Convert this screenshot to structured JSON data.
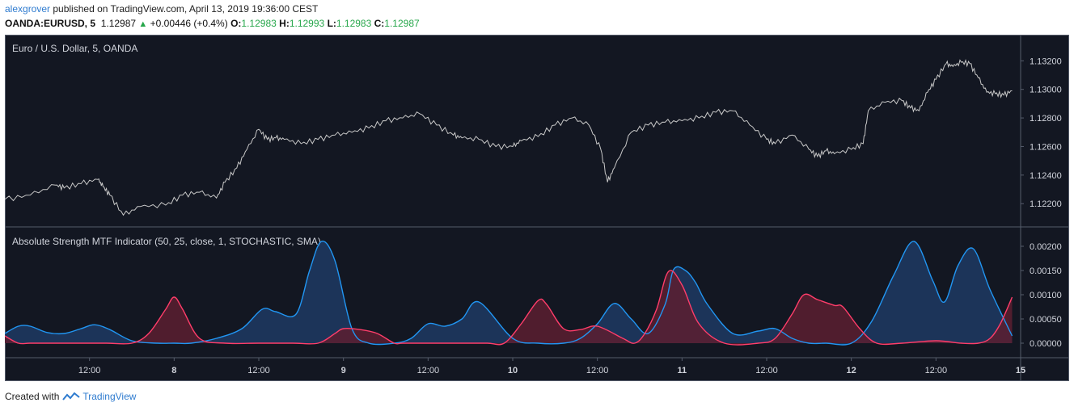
{
  "header": {
    "author": "alexgrover",
    "published_text": " published on TradingView.com, April 13, 2019 19:36:00 CEST",
    "symbol": "OANDA:EURUSD, 5",
    "last": "1.12987",
    "change_arrow": "▲",
    "change": "+0.00446 (+0.4%)",
    "o_label": "O:",
    "o_value": "1.12983",
    "h_label": "H:",
    "h_value": "1.12993",
    "l_label": "L:",
    "l_value": "1.12983",
    "c_label": "C:",
    "c_value": "1.12987"
  },
  "footer": {
    "created_with": "Created with",
    "brand": "TradingView",
    "logo_icon": "tradingview-logo-icon"
  },
  "colors": {
    "background": "#131722",
    "price_line": "#c8c8c8",
    "blue_line": "#2196f3",
    "blue_fill": "#1e3a63",
    "red_line": "#ff3d6a",
    "red_fill": "#5c1f30",
    "green": "#26a64a",
    "author": "#2e7bcf"
  },
  "chart_data": [
    {
      "type": "line",
      "title": "Euro / U.S. Dollar, 5, OANDA",
      "y_ticks": [
        "1.13200",
        "1.13000",
        "1.12800",
        "1.12600",
        "1.12400",
        "1.12200"
      ],
      "y_tick_values": [
        1.132,
        1.13,
        1.128,
        1.126,
        1.124,
        1.122
      ],
      "ylim": [
        1.1206,
        1.1336
      ],
      "x_ticks": [
        "12:00",
        "8",
        "12:00",
        "9",
        "12:00",
        "10",
        "12:00",
        "11",
        "12:00",
        "12",
        "12:00",
        "15"
      ],
      "x_tick_pos": [
        0.5,
        1,
        1.5,
        2,
        2.5,
        3,
        3.5,
        4,
        4.5,
        5,
        5.5,
        6
      ],
      "xlim": [
        0,
        6.0
      ],
      "x_end": 5.95,
      "series": [
        {
          "x": [
            0,
            0.15,
            0.3,
            0.35,
            0.45,
            0.55,
            0.58,
            0.62,
            0.7,
            0.8,
            0.95,
            1.05,
            1.15,
            1.25,
            1.3,
            1.37,
            1.43,
            1.5,
            1.55,
            1.6,
            1.65,
            1.75,
            1.85,
            1.95,
            2.05,
            2.15,
            2.25,
            2.35,
            2.45,
            2.55,
            2.65,
            2.7,
            2.8,
            2.9,
            3.0,
            3.05,
            3.15,
            3.25,
            3.35,
            3.45,
            3.52,
            3.56,
            3.6,
            3.7,
            3.8,
            3.9,
            4.0,
            4.1,
            4.2,
            4.3,
            4.4,
            4.5,
            4.55,
            4.65,
            4.75,
            4.8,
            4.85,
            4.9,
            5.0,
            5.07,
            5.1,
            5.2,
            5.3,
            5.35,
            5.4,
            5.45,
            5.5,
            5.56,
            5.6,
            5.65,
            5.7,
            5.75,
            5.8,
            5.85,
            5.9,
            5.95
          ],
          "y": [
            1.1223,
            1.1226,
            1.1233,
            1.1231,
            1.1234,
            1.1237,
            1.1232,
            1.1226,
            1.1212,
            1.1218,
            1.1219,
            1.1226,
            1.1228,
            1.1224,
            1.1235,
            1.1245,
            1.1258,
            1.1272,
            1.1265,
            1.1266,
            1.1265,
            1.1262,
            1.1265,
            1.1268,
            1.127,
            1.1273,
            1.1278,
            1.128,
            1.1283,
            1.1275,
            1.1268,
            1.1266,
            1.1265,
            1.126,
            1.126,
            1.1264,
            1.1267,
            1.1275,
            1.128,
            1.1275,
            1.1258,
            1.1235,
            1.1245,
            1.127,
            1.1275,
            1.1277,
            1.1278,
            1.128,
            1.1284,
            1.1285,
            1.1275,
            1.1265,
            1.1262,
            1.1268,
            1.1258,
            1.1253,
            1.1257,
            1.1255,
            1.1258,
            1.1262,
            1.1285,
            1.1291,
            1.1292,
            1.1287,
            1.1285,
            1.1298,
            1.1307,
            1.1318,
            1.1316,
            1.1319,
            1.1318,
            1.1308,
            1.1298,
            1.1297,
            1.1296,
            1.1299
          ]
        }
      ]
    },
    {
      "type": "area",
      "title": "Absolute Strength MTF Indicator (50, 25, close, 1, STOCHASTIC, SMA)",
      "y_ticks": [
        "0.00200",
        "0.00150",
        "0.00100",
        "0.00050",
        "0.00000"
      ],
      "y_tick_values": [
        0.002,
        0.0015,
        0.001,
        0.0005,
        0.0
      ],
      "ylim": [
        -0.0002,
        0.0023
      ],
      "series": [
        {
          "x": [
            0,
            0.08,
            0.15,
            0.25,
            0.35,
            0.45,
            0.53,
            0.62,
            0.75,
            0.9,
            1.0,
            1.1,
            1.25,
            1.4,
            1.52,
            1.6,
            1.72,
            1.8,
            1.87,
            1.95,
            2.05,
            2.15,
            2.3,
            2.4,
            2.5,
            2.6,
            2.7,
            2.8,
            3.0,
            3.15,
            3.3,
            3.4,
            3.5,
            3.6,
            3.7,
            3.8,
            3.9,
            3.95,
            4.02,
            4.08,
            4.15,
            4.3,
            4.45,
            4.55,
            4.65,
            4.75,
            4.85,
            5.0,
            5.12,
            5.25,
            5.37,
            5.48,
            5.55,
            5.63,
            5.72,
            5.82,
            5.95
          ],
          "y": [
            0.0002,
            0.00035,
            0.00035,
            0.00022,
            0.0002,
            0.0003,
            0.00038,
            0.00028,
            5e-05,
            0.0,
            0.0,
            0.0,
            0.0001,
            0.0003,
            0.0007,
            0.00065,
            0.0006,
            0.0015,
            0.0021,
            0.0017,
            0.0003,
            0.0,
            0.0,
            0.0001,
            0.0004,
            0.00035,
            0.0005,
            0.00085,
            0.0001,
            0.0,
            0.0,
            0.0001,
            0.0004,
            0.00082,
            0.0005,
            0.0002,
            0.0008,
            0.00152,
            0.0015,
            0.00125,
            0.0008,
            0.0002,
            0.00025,
            0.0003,
            0.0001,
            0.0,
            0.0,
            0.0,
            0.00045,
            0.0014,
            0.0021,
            0.0013,
            0.00085,
            0.0016,
            0.00195,
            0.0011,
            0.00015
          ]
        },
        {
          "x": [
            0,
            0.08,
            0.15,
            0.3,
            0.45,
            0.6,
            0.75,
            0.85,
            0.95,
            1.0,
            1.05,
            1.15,
            1.3,
            1.5,
            1.7,
            1.85,
            1.95,
            2.0,
            2.1,
            2.2,
            2.3,
            2.35,
            2.5,
            2.7,
            2.85,
            2.95,
            3.05,
            3.15,
            3.2,
            3.3,
            3.4,
            3.5,
            3.65,
            3.72,
            3.78,
            3.85,
            3.92,
            4.0,
            4.1,
            4.25,
            4.45,
            4.55,
            4.65,
            4.72,
            4.8,
            4.9,
            4.95,
            5.05,
            5.15,
            5.3,
            5.5,
            5.65,
            5.75,
            5.82,
            5.88,
            5.95
          ],
          "y": [
            0.00015,
            0.0,
            0.0,
            0.0,
            0.0,
            0.0,
            0.0,
            0.0002,
            0.0007,
            0.00095,
            0.0007,
            0.0001,
            0.0,
            0.0,
            0.0,
            0.0,
            0.0002,
            0.0003,
            0.00028,
            0.0002,
            0.0,
            0.0,
            0.0,
            0.0,
            0.0,
            0.0,
            0.0004,
            0.00088,
            0.0008,
            0.0003,
            0.00028,
            0.00035,
            0.0001,
            0.0,
            0.0002,
            0.0007,
            0.00148,
            0.0012,
            0.0004,
            0.0,
            0.0,
            0.0001,
            0.0006,
            0.001,
            0.0009,
            0.00078,
            0.00075,
            0.0003,
            0.0,
            0.0,
            5e-05,
            0.0,
            0.0,
            0.0001,
            0.0004,
            0.00095
          ]
        }
      ]
    }
  ]
}
